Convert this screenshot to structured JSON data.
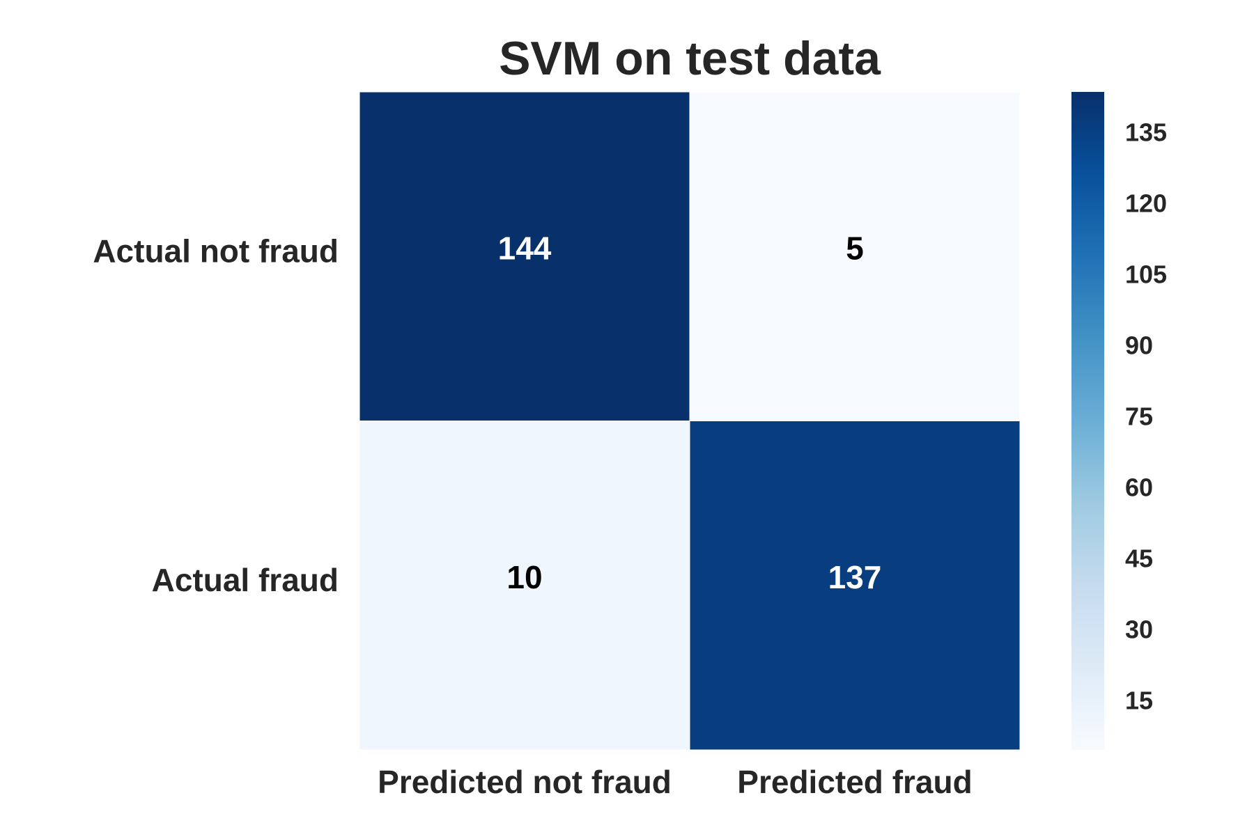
{
  "chart_data": {
    "type": "heatmap",
    "title": "SVM on test data",
    "row_labels": [
      "Actual not fraud",
      "Actual fraud"
    ],
    "col_labels": [
      "Predicted not fraud",
      "Predicted fraud"
    ],
    "values": [
      [
        144,
        5
      ],
      [
        10,
        137
      ]
    ],
    "colorbar": {
      "min": 5,
      "max": 144,
      "ticks": [
        15,
        30,
        45,
        60,
        75,
        90,
        105,
        120,
        135
      ],
      "colormap": "Blues",
      "low_color": "#f7fbff",
      "high_color": "#08306b"
    },
    "grid": false
  }
}
